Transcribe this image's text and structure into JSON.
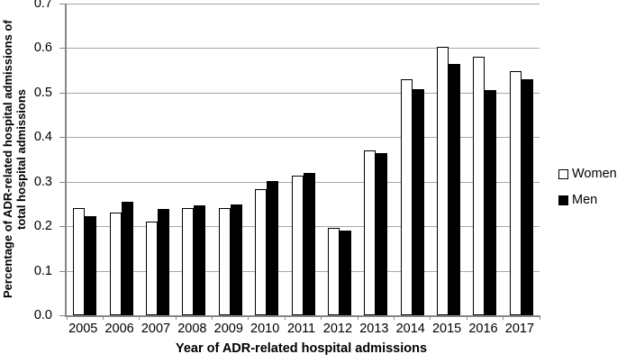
{
  "chart_data": {
    "type": "bar",
    "title": "",
    "xlabel": "Year of ADR-related hospital admissions",
    "ylabel": "Percentage of ADR-related hospital admissions of total hospital admissions",
    "ylabel_lines": [
      "Percentage of ADR-related hospital admissions of",
      "total hospital admissions"
    ],
    "categories": [
      "2005",
      "2006",
      "2007",
      "2008",
      "2009",
      "2010",
      "2011",
      "2012",
      "2013",
      "2014",
      "2015",
      "2016",
      "2017"
    ],
    "series": [
      {
        "name": "Women",
        "fill": "#ffffff",
        "stroke": "#000000",
        "values": [
          0.24,
          0.231,
          0.211,
          0.241,
          0.24,
          0.284,
          0.314,
          0.196,
          0.371,
          0.531,
          0.604,
          0.581,
          0.549
        ]
      },
      {
        "name": "Men",
        "fill": "#000000",
        "stroke": "#000000",
        "values": [
          0.222,
          0.255,
          0.238,
          0.246,
          0.249,
          0.301,
          0.32,
          0.191,
          0.364,
          0.507,
          0.564,
          0.505,
          0.531
        ]
      }
    ],
    "ylim": [
      0.0,
      0.7
    ],
    "ytick_step": 0.1,
    "yticks": [
      "0.0",
      "0.1",
      "0.2",
      "0.3",
      "0.4",
      "0.5",
      "0.6",
      "0.7"
    ],
    "grid": true,
    "legend_position": "right"
  },
  "colors": {
    "background": "#ffffff",
    "grid": "#a8a8a8",
    "axis": "#878787",
    "bar_women_fill": "#ffffff",
    "bar_men_fill": "#000000",
    "bar_stroke": "#000000",
    "text": "#000000"
  }
}
